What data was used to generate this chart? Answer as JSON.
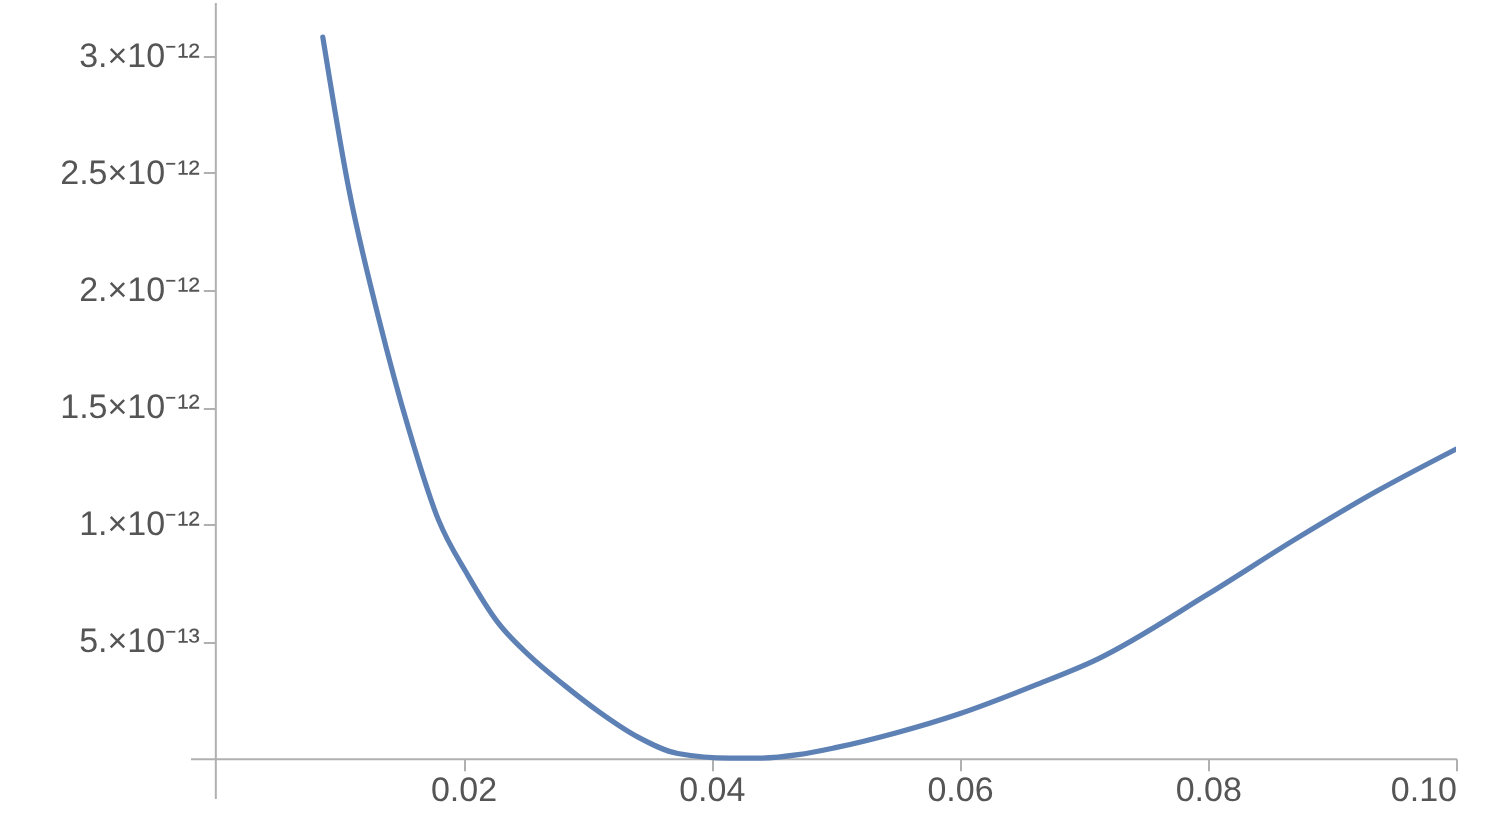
{
  "chart_data": {
    "type": "line",
    "x": [
      0.0087,
      0.0108,
      0.0132,
      0.0156,
      0.018,
      0.0204,
      0.0228,
      0.0253,
      0.0282,
      0.0309,
      0.0341,
      0.0373,
      0.0415,
      0.0438,
      0.047,
      0.05,
      0.055,
      0.06,
      0.066,
      0.071,
      0.08,
      0.0872,
      0.0936,
      0.1
    ],
    "series": [
      {
        "color": "#5e81b5",
        "values": [
          3.08e-12,
          2.43e-12,
          1.88e-12,
          1.41e-12,
          1.02e-12,
          7.8e-13,
          5.8e-13,
          4.4e-13,
          3.1e-13,
          2e-13,
          9e-14,
          2e-14,
          0,
          0,
          1.5e-14,
          4.5e-14,
          1.1e-13,
          1.9e-13,
          3.1e-13,
          4.2e-13,
          7e-13,
          9.4e-13,
          1.14e-12,
          1.32e-12
        ]
      }
    ],
    "xlim": [
      -0.002,
      0.1
    ],
    "ylim": [
      -1.7e-13,
      3.23e-12
    ],
    "xticks": [
      {
        "value": 0.02,
        "label": "0.02"
      },
      {
        "value": 0.04,
        "label": "0.04"
      },
      {
        "value": 0.06,
        "label": "0.06"
      },
      {
        "value": 0.08,
        "label": "0.08"
      },
      {
        "value": 0.1,
        "label": "0.10"
      }
    ],
    "yticks": [
      {
        "value": 5e-13,
        "label": "5.×10⁻¹³"
      },
      {
        "value": 1e-12,
        "label": "1.×10⁻¹²"
      },
      {
        "value": 1.5e-12,
        "label": "1.5×10⁻¹²"
      },
      {
        "value": 2e-12,
        "label": "2.×10⁻¹²"
      },
      {
        "value": 2.5e-12,
        "label": "2.5×10⁻¹²"
      },
      {
        "value": 3e-12,
        "label": "3.×10⁻¹²"
      }
    ],
    "grid": false,
    "marker": "none",
    "line_style": "solid"
  }
}
